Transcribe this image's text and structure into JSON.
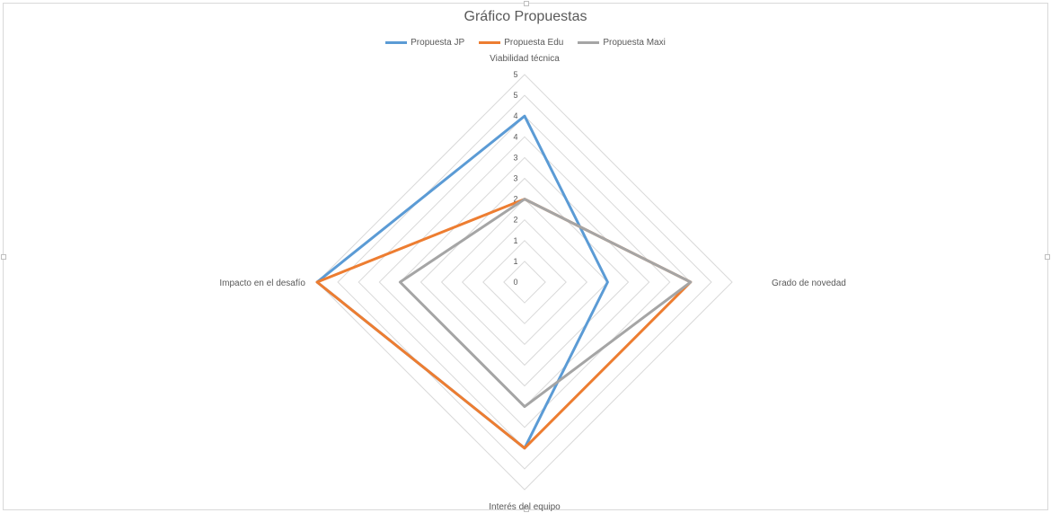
{
  "chart_data": {
    "type": "radar",
    "title": "Gráfico Propuestas",
    "categories": [
      "Viabilidad técnica",
      "Grado de novedad",
      "Interés del equipo",
      "Impacto en el desafío"
    ],
    "rlim": [
      0,
      5
    ],
    "ticks": [
      "0",
      "1",
      "1",
      "2",
      "2",
      "3",
      "3",
      "4",
      "4",
      "5",
      "5"
    ],
    "tick_values": [
      0,
      0.5,
      1,
      1.5,
      2,
      2.5,
      3,
      3.5,
      4,
      4.5,
      5
    ],
    "grid": true,
    "legend_position": "top",
    "series": [
      {
        "name": "Propuesta JP",
        "color": "#5b9bd5",
        "values": [
          4,
          2,
          4,
          5
        ]
      },
      {
        "name": "Propuesta Edu",
        "color": "#ed7d31",
        "values": [
          2,
          4,
          4,
          5
        ]
      },
      {
        "name": "Propuesta Maxi",
        "color": "#a5a5a5",
        "values": [
          2,
          4,
          3,
          3
        ]
      }
    ]
  }
}
